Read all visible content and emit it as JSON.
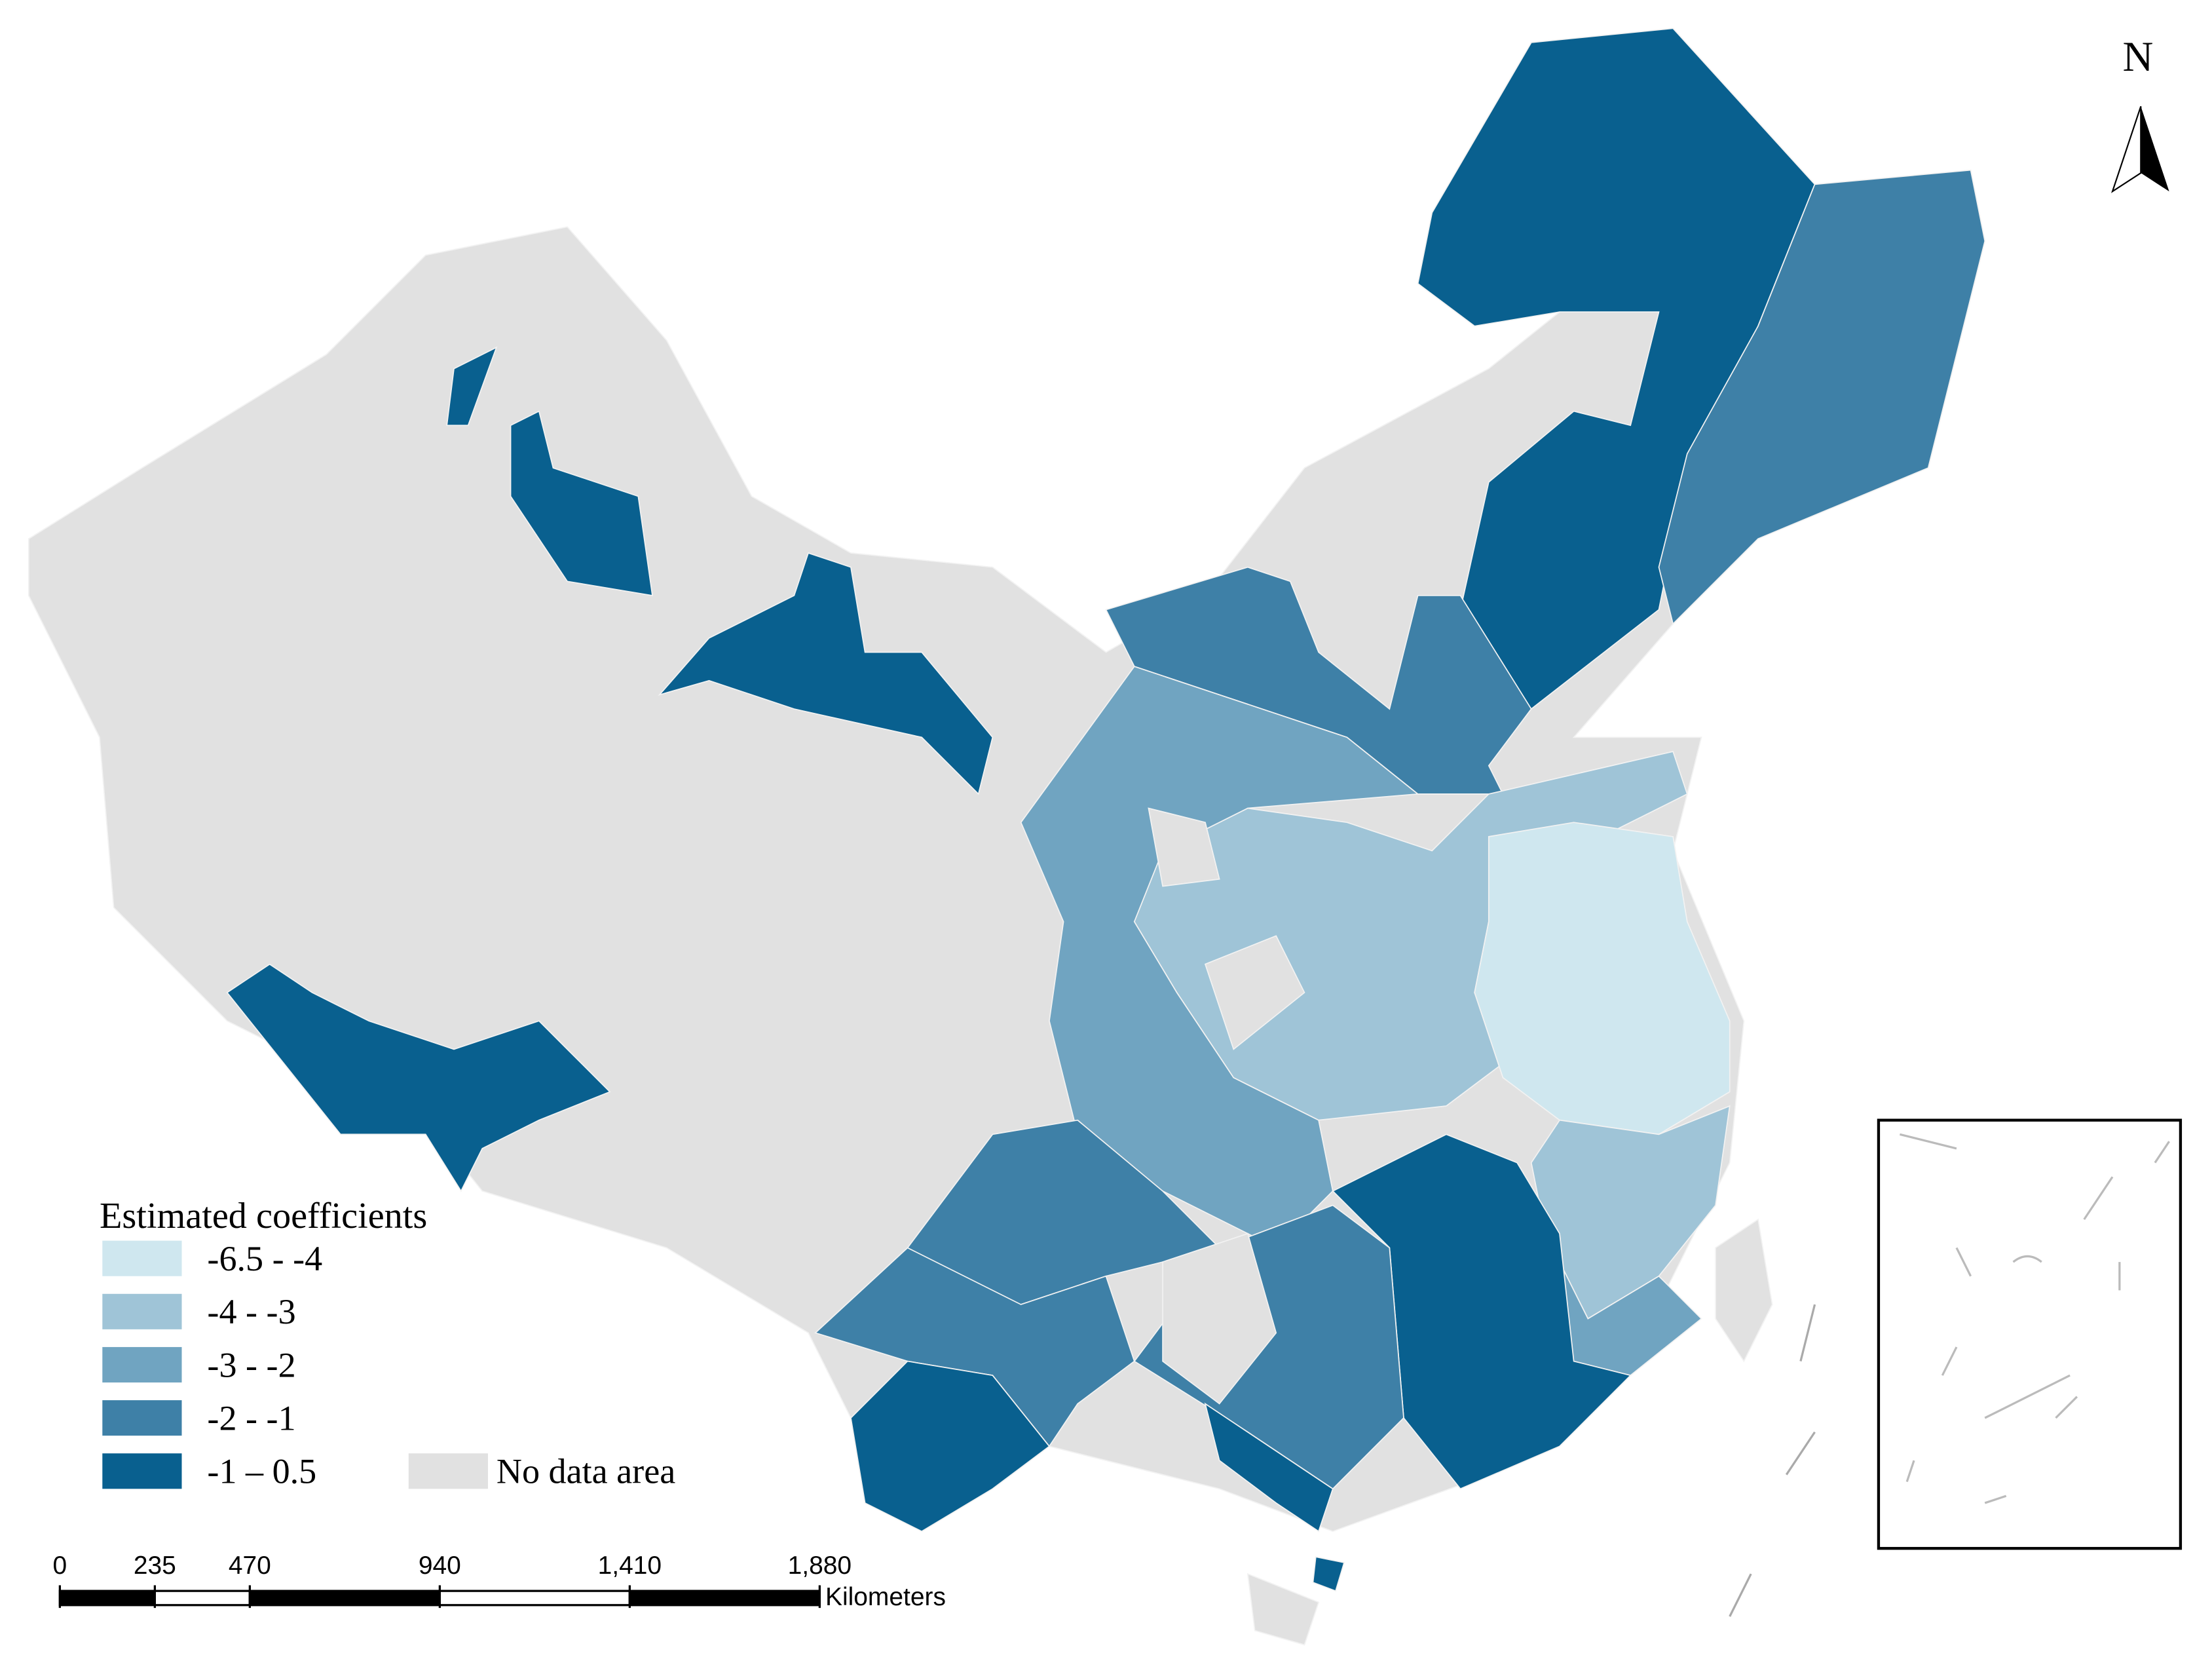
{
  "north_arrow": {
    "label": "N"
  },
  "legend": {
    "title": "Estimated coefficients",
    "items": [
      {
        "label": "-6.5  - -4",
        "color": "#cfe7ef"
      },
      {
        "label": "-4 - -3",
        "color": "#9fc4d7"
      },
      {
        "label": "-3 - -2",
        "color": "#70a4c1"
      },
      {
        "label": "-2 - -1",
        "color": "#3e80a7"
      },
      {
        "label": "-1 – 0.5",
        "color": "#09608f"
      }
    ],
    "no_data": {
      "label": "No data area",
      "color": "#e1e1e1"
    }
  },
  "scale_bar": {
    "ticks": [
      {
        "value": 0,
        "label": "0"
      },
      {
        "value": 235,
        "label": "235"
      },
      {
        "value": 470,
        "label": "470"
      },
      {
        "value": 940,
        "label": "940"
      },
      {
        "value": 1410,
        "label": "1,410"
      },
      {
        "value": 1880,
        "label": "1,880"
      }
    ],
    "unit": "Kilometers"
  }
}
